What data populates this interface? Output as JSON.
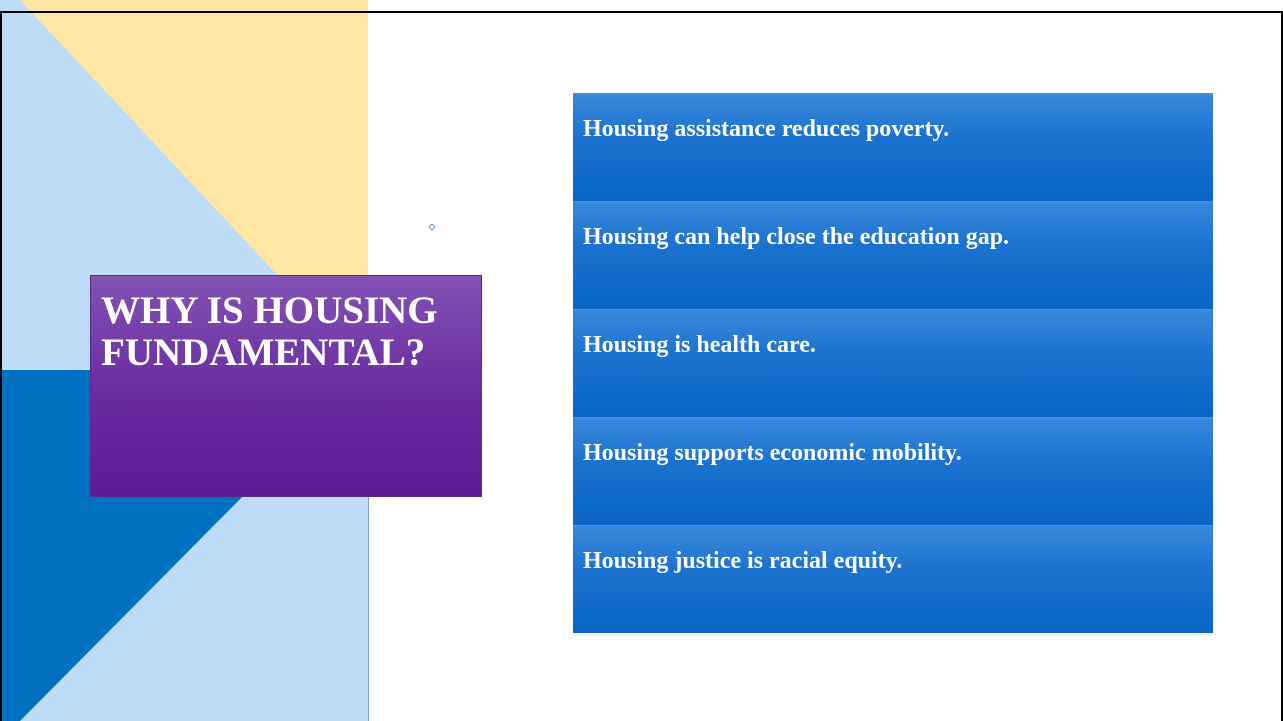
{
  "title": "WHY IS HOUSING FUNDAMENTAL?",
  "items": [
    "Housing assistance reduces poverty.",
    "Housing can help close the education gap.",
    "Housing is health care.",
    "Housing supports economic mobility.",
    "Housing justice is racial equity."
  ]
}
